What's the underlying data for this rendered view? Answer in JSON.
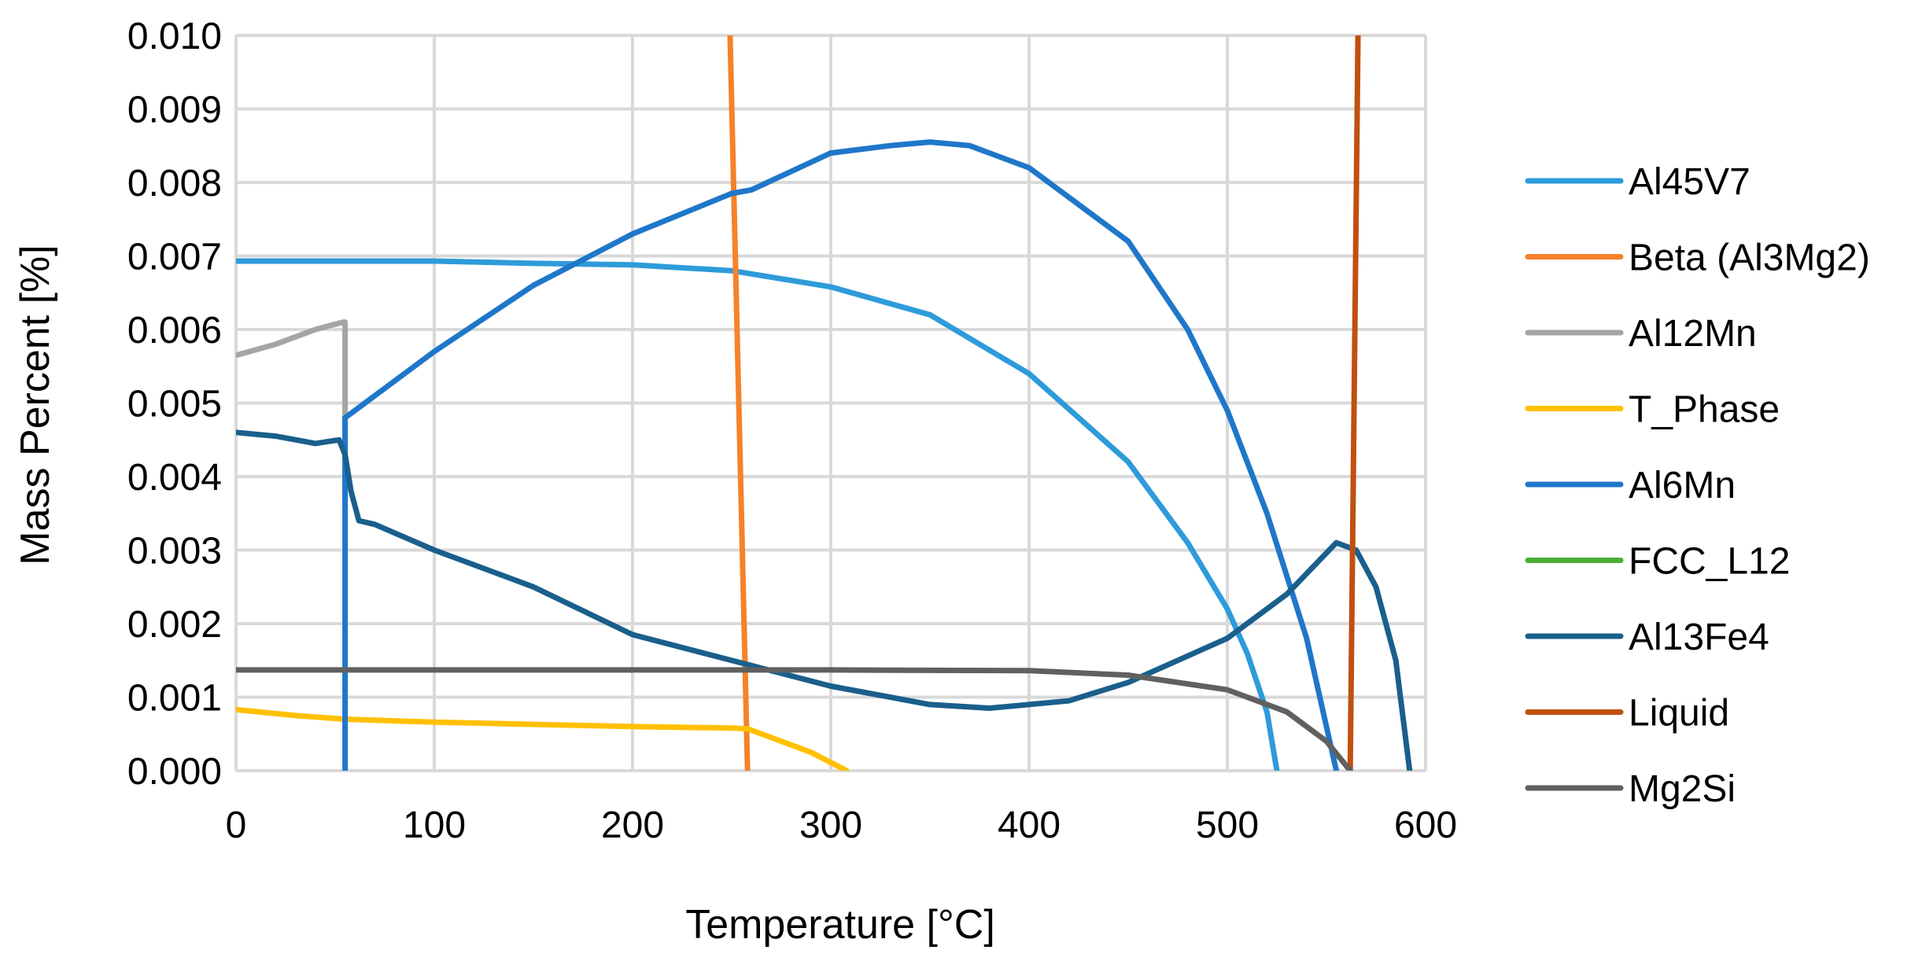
{
  "chart_data": {
    "type": "line",
    "title": "",
    "xlabel": "Temperature [°C]",
    "ylabel": "Mass Percent [%]",
    "xlim": [
      0,
      600
    ],
    "ylim": [
      0,
      0.01
    ],
    "xticks": [
      0,
      100,
      200,
      300,
      400,
      500,
      600
    ],
    "xtick_labels": [
      "0",
      "100",
      "200",
      "300",
      "400",
      "500",
      "600"
    ],
    "yticks": [
      0,
      0.001,
      0.002,
      0.003,
      0.004,
      0.005,
      0.006,
      0.007,
      0.008,
      0.009,
      0.01
    ],
    "ytick_labels": [
      "0.000",
      "0.001",
      "0.002",
      "0.003",
      "0.004",
      "0.005",
      "0.006",
      "0.007",
      "0.008",
      "0.009",
      "0.010"
    ],
    "grid": true,
    "legend_position": "right",
    "series": [
      {
        "name": "Al45V7",
        "color": "#2E9BDA",
        "points": [
          [
            0,
            0.00693
          ],
          [
            100,
            0.00693
          ],
          [
            150,
            0.0069
          ],
          [
            200,
            0.00688
          ],
          [
            250,
            0.0068
          ],
          [
            300,
            0.00658
          ],
          [
            350,
            0.0062
          ],
          [
            400,
            0.0054
          ],
          [
            450,
            0.0042
          ],
          [
            480,
            0.0031
          ],
          [
            500,
            0.0022
          ],
          [
            510,
            0.0016
          ],
          [
            520,
            0.0008
          ],
          [
            525,
            0.0
          ]
        ]
      },
      {
        "name": "Beta (Al3Mg2)",
        "color": "#F5822A",
        "points": [
          [
            249,
            0.0102
          ],
          [
            258,
            0.0
          ]
        ]
      },
      {
        "name": "Al12Mn",
        "color": "#A5A5A5",
        "points": [
          [
            0,
            0.00565
          ],
          [
            20,
            0.0058
          ],
          [
            40,
            0.006
          ],
          [
            54,
            0.0061
          ],
          [
            55,
            0.0061
          ],
          [
            55,
            0.0037
          ]
        ]
      },
      {
        "name": "T_Phase",
        "color": "#FFC000",
        "points": [
          [
            0,
            0.00083
          ],
          [
            30,
            0.00075
          ],
          [
            55,
            0.0007
          ],
          [
            100,
            0.00066
          ],
          [
            150,
            0.00063
          ],
          [
            200,
            0.0006
          ],
          [
            250,
            0.00058
          ],
          [
            258,
            0.00057
          ],
          [
            270,
            0.00045
          ],
          [
            290,
            0.00025
          ],
          [
            308,
            0.0
          ]
        ]
      },
      {
        "name": "Al6Mn",
        "color": "#1F77C9",
        "points": [
          [
            55,
            0.0
          ],
          [
            55,
            0.0048
          ],
          [
            60,
            0.0049
          ],
          [
            100,
            0.0057
          ],
          [
            150,
            0.0066
          ],
          [
            200,
            0.0073
          ],
          [
            250,
            0.00785
          ],
          [
            260,
            0.0079
          ],
          [
            300,
            0.0084
          ],
          [
            330,
            0.0085
          ],
          [
            350,
            0.00855
          ],
          [
            370,
            0.0085
          ],
          [
            400,
            0.0082
          ],
          [
            450,
            0.0072
          ],
          [
            480,
            0.006
          ],
          [
            500,
            0.0049
          ],
          [
            520,
            0.0035
          ],
          [
            540,
            0.0018
          ],
          [
            555,
            0.0
          ]
        ]
      },
      {
        "name": "FCC_L12",
        "color": "#4CAF37",
        "points": []
      },
      {
        "name": "Al13Fe4",
        "color": "#1A5F8C",
        "points": [
          [
            0,
            0.0046
          ],
          [
            20,
            0.00455
          ],
          [
            40,
            0.00445
          ],
          [
            52,
            0.0045
          ],
          [
            55,
            0.0043
          ],
          [
            58,
            0.0038
          ],
          [
            62,
            0.0034
          ],
          [
            70,
            0.00335
          ],
          [
            100,
            0.003
          ],
          [
            150,
            0.0025
          ],
          [
            200,
            0.00185
          ],
          [
            250,
            0.0015
          ],
          [
            300,
            0.00115
          ],
          [
            350,
            0.0009
          ],
          [
            380,
            0.00085
          ],
          [
            420,
            0.00095
          ],
          [
            450,
            0.0012
          ],
          [
            500,
            0.0018
          ],
          [
            530,
            0.0024
          ],
          [
            555,
            0.0031
          ],
          [
            565,
            0.003
          ],
          [
            575,
            0.0025
          ],
          [
            585,
            0.0015
          ],
          [
            592,
            0.0
          ]
        ]
      },
      {
        "name": "Liquid",
        "color": "#C0500F",
        "points": [
          [
            562,
            0.0
          ],
          [
            566,
            0.0102
          ]
        ]
      },
      {
        "name": "Mg2Si",
        "color": "#606060",
        "points": [
          [
            0,
            0.00137
          ],
          [
            200,
            0.00137
          ],
          [
            300,
            0.00137
          ],
          [
            400,
            0.00136
          ],
          [
            450,
            0.0013
          ],
          [
            500,
            0.0011
          ],
          [
            530,
            0.0008
          ],
          [
            550,
            0.0004
          ],
          [
            562,
            0.0
          ]
        ]
      }
    ]
  }
}
